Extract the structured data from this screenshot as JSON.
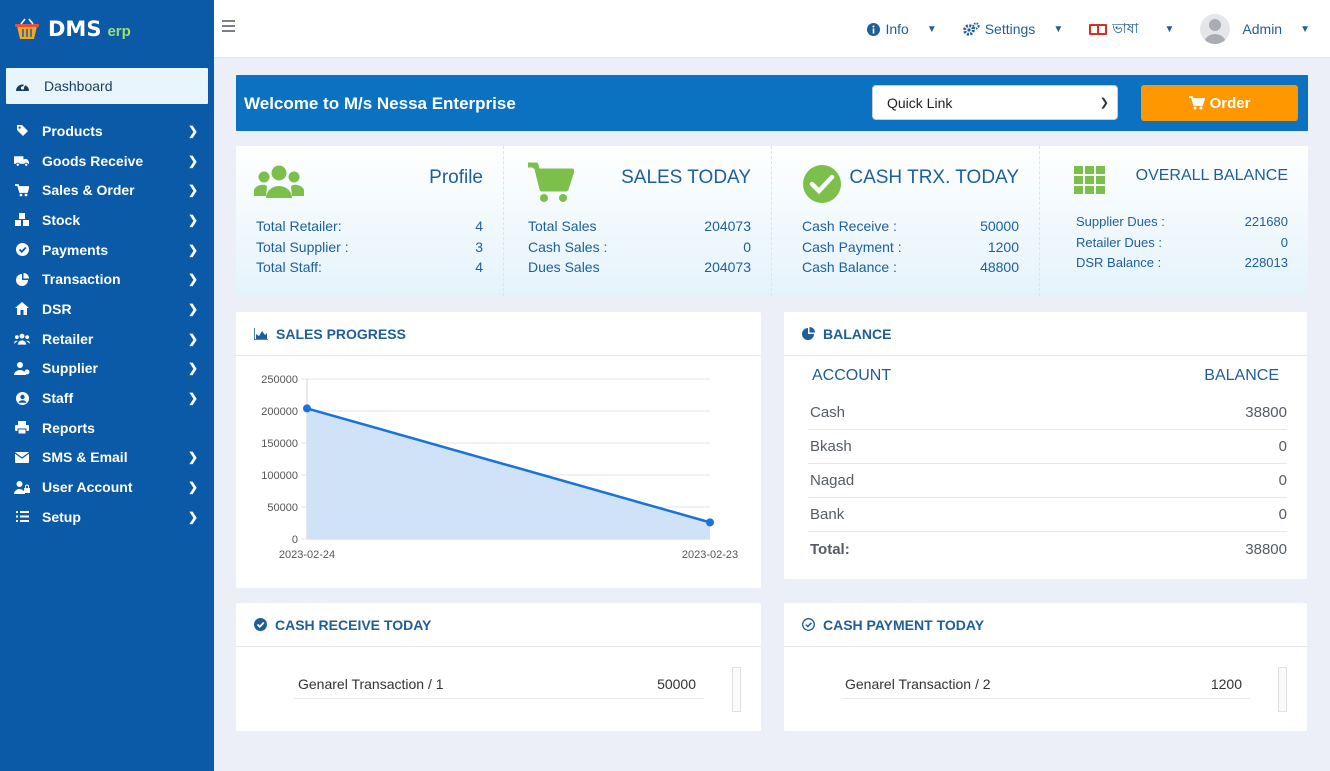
{
  "brand": {
    "name": "DMS",
    "suffix": "erp"
  },
  "sidebar": {
    "items": [
      {
        "label": "Dashboard",
        "icon": "dashboard-icon"
      },
      {
        "label": "Products",
        "icon": "tag-icon"
      },
      {
        "label": "Goods Receive",
        "icon": "truck-icon"
      },
      {
        "label": "Sales & Order",
        "icon": "cart-icon"
      },
      {
        "label": "Stock",
        "icon": "boxes-icon"
      },
      {
        "label": "Payments",
        "icon": "check-circle-icon"
      },
      {
        "label": "Transaction",
        "icon": "pie-icon"
      },
      {
        "label": "DSR",
        "icon": "home-icon"
      },
      {
        "label": "Retailer",
        "icon": "users-icon"
      },
      {
        "label": "Supplier",
        "icon": "user-tie-icon"
      },
      {
        "label": "Staff",
        "icon": "user-circle-icon"
      },
      {
        "label": "Reports",
        "icon": "print-icon"
      },
      {
        "label": "SMS & Email",
        "icon": "envelope-icon"
      },
      {
        "label": "User Account",
        "icon": "user-lock-icon"
      },
      {
        "label": "Setup",
        "icon": "list-icon"
      }
    ]
  },
  "topbar": {
    "info": "Info",
    "settings": "Settings",
    "language": "ভাষা",
    "user": "Admin"
  },
  "welcome": {
    "title": "Welcome to M/s Nessa Enterprise",
    "quick_link": "Quick Link",
    "order": "Order"
  },
  "stats": {
    "profile": {
      "title": "Profile",
      "rows": [
        {
          "label": "Total Retailer:",
          "value": "4"
        },
        {
          "label": "Total Supplier :",
          "value": "3"
        },
        {
          "label": "Total Staff:",
          "value": "4"
        }
      ]
    },
    "sales": {
      "title": "SALES TODAY",
      "rows": [
        {
          "label": "Total Sales",
          "value": "204073"
        },
        {
          "label": "Cash Sales :",
          "value": "0"
        },
        {
          "label": "Dues Sales",
          "value": "204073"
        }
      ]
    },
    "cash": {
      "title": "CASH TRX. TODAY",
      "rows": [
        {
          "label": "Cash Receive :",
          "value": "50000"
        },
        {
          "label": "Cash Payment :",
          "value": "1200"
        },
        {
          "label": "Cash Balance :",
          "value": "48800"
        }
      ]
    },
    "overall": {
      "title": "OVERALL BALANCE",
      "rows": [
        {
          "label": "Supplier Dues :",
          "value": "221680"
        },
        {
          "label": "Retailer Dues :",
          "value": "0"
        },
        {
          "label": "DSR Balance :",
          "value": "228013"
        }
      ]
    }
  },
  "sales_progress": {
    "title": "SALES PROGRESS"
  },
  "chart_data": {
    "type": "area",
    "x": [
      "2023-02-24",
      "2023-02-23"
    ],
    "values": [
      204073,
      26000
    ],
    "ylim": [
      0,
      250000
    ],
    "yticks": [
      "250000",
      "200000",
      "150000",
      "100000",
      "50000",
      "0"
    ],
    "color": "#1a73d9",
    "fill": "#cfe2f7"
  },
  "balance": {
    "title": "BALANCE",
    "col_account": "ACCOUNT",
    "col_balance": "BALANCE",
    "rows": [
      {
        "account": "Cash",
        "balance": "38800"
      },
      {
        "account": "Bkash",
        "balance": "0"
      },
      {
        "account": "Nagad",
        "balance": "0"
      },
      {
        "account": "Bank",
        "balance": "0"
      },
      {
        "account": "Total:",
        "balance": "38800"
      }
    ]
  },
  "cash_receive": {
    "title": "CASH RECEIVE TODAY",
    "row": {
      "label": "Genarel Transaction / 1",
      "value": "50000"
    }
  },
  "cash_payment": {
    "title": "CASH PAYMENT TODAY",
    "row": {
      "label": "Genarel Transaction / 2",
      "value": "1200"
    }
  }
}
